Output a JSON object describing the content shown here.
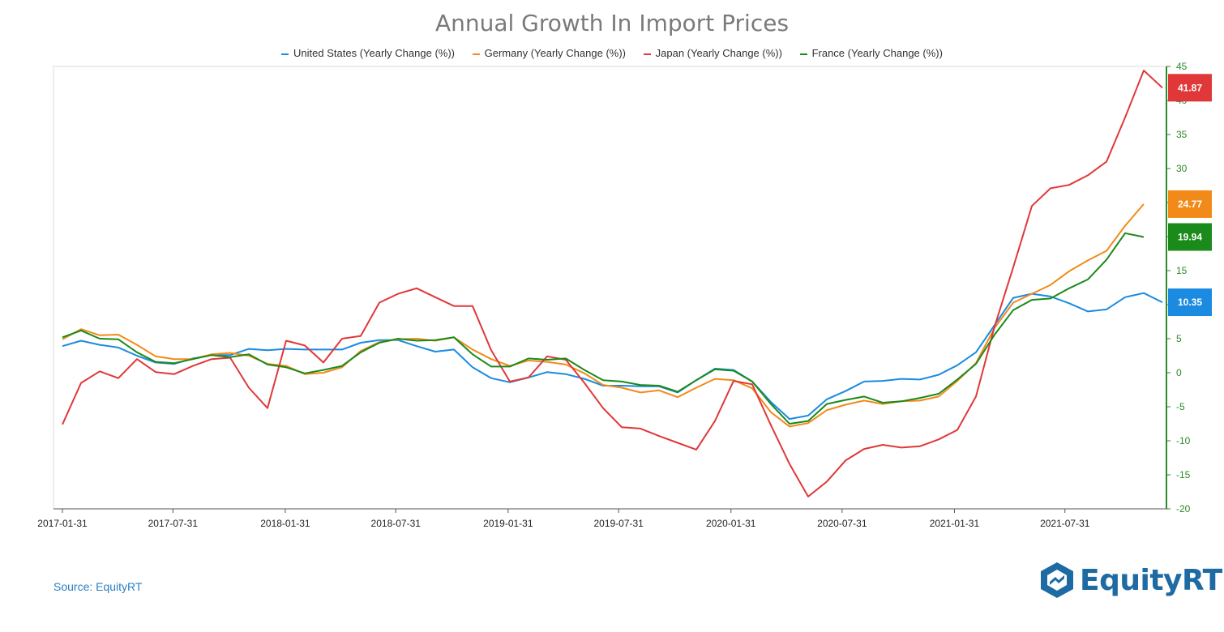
{
  "title": "Annual Growth In Import Prices",
  "source": "Source: EquityRT",
  "logo": {
    "text": "EquityRT",
    "icon": "equityrt-hexagon-logo-icon"
  },
  "colors": {
    "grid": "#dddddd",
    "axis": "#2a8a2a",
    "title": "#7a7a7a"
  },
  "chart_data": {
    "type": "line",
    "title": "Annual Growth In Import Prices",
    "x_tick_labels": [
      "2017-01-31",
      "2017-07-31",
      "2018-01-31",
      "2018-07-31",
      "2019-01-31",
      "2019-07-31",
      "2020-01-31",
      "2020-07-31",
      "2021-01-31",
      "2021-07-31"
    ],
    "ylim": [
      -20,
      45
    ],
    "y_ticks": [
      45,
      40,
      35,
      30,
      25,
      20,
      15,
      10,
      5,
      0,
      -5,
      -10,
      -15,
      -20
    ],
    "y_axis_side": "right",
    "grid": false,
    "legend_position": "top",
    "x_start": "2017-01-31",
    "x_end": "2021-12-31",
    "series": [
      {
        "name": "United States (Yearly Change (%))",
        "color": "#1a8be0",
        "end_label": "10.35",
        "values": [
          3.9,
          4.7,
          4.1,
          3.7,
          2.5,
          1.5,
          1.3,
          2.1,
          2.6,
          2.6,
          3.5,
          3.3,
          3.5,
          3.4,
          3.4,
          3.4,
          4.4,
          4.8,
          4.8,
          3.9,
          3.1,
          3.4,
          0.8,
          -0.8,
          -1.4,
          -0.7,
          0.1,
          -0.2,
          -0.9,
          -1.9,
          -1.9,
          -2.0,
          -2.0,
          -2.9,
          -1.1,
          0.6,
          0.4,
          -1.3,
          -4.3,
          -6.8,
          -6.3,
          -3.9,
          -2.7,
          -1.3,
          -1.2,
          -0.9,
          -1.0,
          -0.3,
          1.1,
          3.0,
          7.0,
          11.0,
          11.6,
          11.2,
          10.2,
          9.0,
          9.3,
          11.1,
          11.7,
          10.35
        ]
      },
      {
        "name": "Germany (Yearly Change (%))",
        "color": "#f28a1a",
        "end_label": "24.77",
        "values": [
          4.9,
          6.4,
          5.5,
          5.6,
          4.1,
          2.4,
          2.0,
          2.0,
          2.7,
          2.9,
          2.5,
          1.3,
          1.0,
          -0.2,
          0.0,
          0.8,
          3.2,
          4.5,
          4.9,
          5.0,
          4.7,
          5.2,
          3.4,
          2.0,
          1.0,
          1.8,
          1.6,
          1.2,
          -0.1,
          -1.8,
          -2.2,
          -2.9,
          -2.6,
          -3.6,
          -2.2,
          -0.9,
          -1.1,
          -2.3,
          -5.8,
          -7.9,
          -7.4,
          -5.5,
          -4.7,
          -4.1,
          -4.6,
          -4.2,
          -4.1,
          -3.5,
          -1.2,
          1.4,
          6.6,
          10.3,
          11.6,
          12.9,
          14.9,
          16.5,
          17.9,
          21.6,
          24.77
        ]
      },
      {
        "name": "Japan (Yearly Change (%))",
        "color": "#e03838",
        "end_label": "41.87",
        "values": [
          -7.6,
          -1.5,
          0.2,
          -0.8,
          2.0,
          0.1,
          -0.2,
          1.0,
          2.0,
          2.2,
          -2.2,
          -5.2,
          4.7,
          4.0,
          1.5,
          5.0,
          5.4,
          10.3,
          11.6,
          12.4,
          11.1,
          9.8,
          9.8,
          3.3,
          -1.3,
          -0.7,
          2.4,
          1.9,
          -1.5,
          -5.2,
          -8.0,
          -8.2,
          -9.3,
          -10.3,
          -11.3,
          -7.1,
          -1.2,
          -1.7,
          -7.7,
          -13.4,
          -18.2,
          -16.0,
          -12.9,
          -11.2,
          -10.6,
          -11.0,
          -10.8,
          -9.8,
          -8.4,
          -3.5,
          6.8,
          15.5,
          24.5,
          27.1,
          27.6,
          29.0,
          31.0,
          37.5,
          44.4,
          41.87
        ]
      },
      {
        "name": "France (Yearly Change (%))",
        "color": "#1a8a1a",
        "end_label": "19.94",
        "values": [
          5.2,
          6.2,
          5.0,
          4.9,
          3.0,
          1.6,
          1.4,
          2.0,
          2.6,
          2.3,
          2.7,
          1.2,
          0.8,
          -0.1,
          0.4,
          1.0,
          3.0,
          4.4,
          5.0,
          4.7,
          4.8,
          5.2,
          2.7,
          0.9,
          0.9,
          2.1,
          1.9,
          2.1,
          0.4,
          -1.1,
          -1.3,
          -1.8,
          -1.9,
          -2.8,
          -1.1,
          0.5,
          0.3,
          -1.3,
          -4.6,
          -7.5,
          -7.1,
          -4.6,
          -4.0,
          -3.5,
          -4.4,
          -4.2,
          -3.7,
          -3.1,
          -1.0,
          1.3,
          5.6,
          9.2,
          10.7,
          10.9,
          12.4,
          13.7,
          16.6,
          20.5,
          19.94
        ]
      }
    ]
  }
}
